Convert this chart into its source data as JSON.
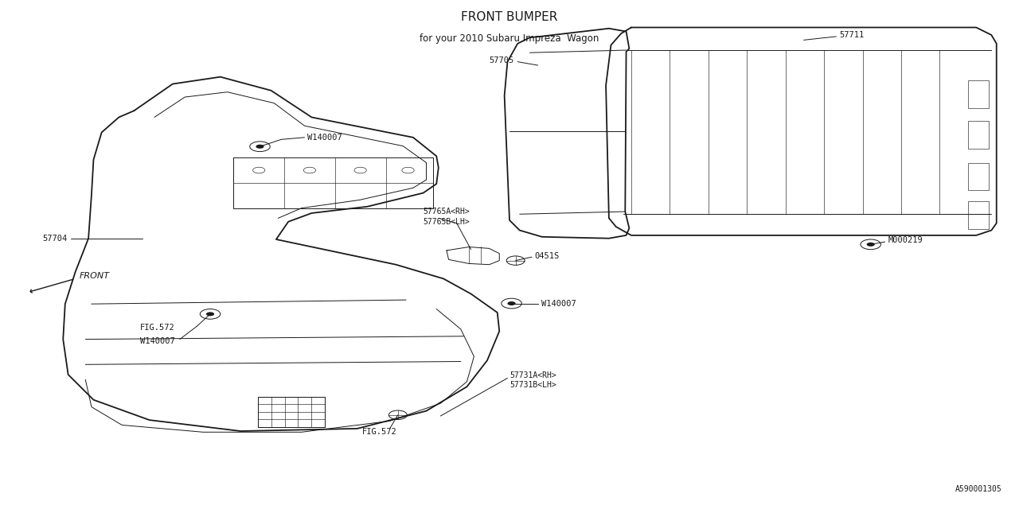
{
  "bg_color": "#ffffff",
  "line_color": "#1a1a1a",
  "title": "FRONT BUMPER",
  "subtitle": "for your 2010 Subaru Impreza  Wagon",
  "fig_id": "A590001305"
}
